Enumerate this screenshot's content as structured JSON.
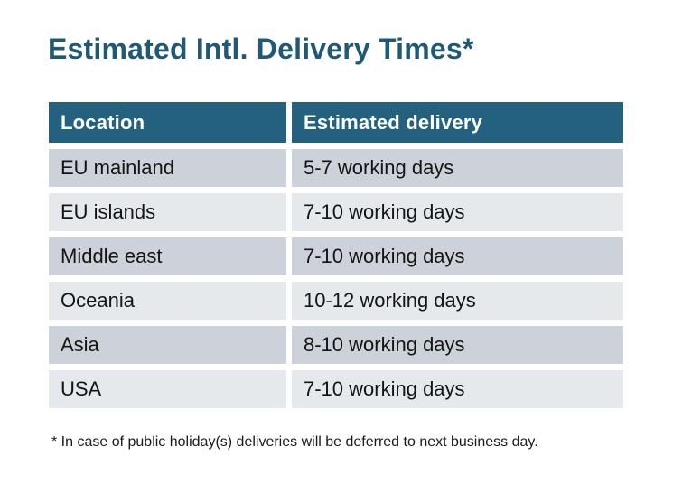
{
  "page": {
    "title": "Estimated Intl. Delivery Times*",
    "footnote": "* In case of public holiday(s) deliveries will be deferred to next business day."
  },
  "colors": {
    "background": "#ffffff",
    "title_text": "#1f5973",
    "header_bg": "#24617f",
    "header_text": "#ffffff",
    "row_dark_bg": "#cdd1d9",
    "row_light_bg": "#e6e9ec",
    "cell_text": "#141414"
  },
  "table": {
    "columns": [
      "Location",
      "Estimated delivery"
    ],
    "rows": [
      {
        "location": "EU mainland",
        "delivery": "5-7 working days"
      },
      {
        "location": "EU islands",
        "delivery": "7-10 working days"
      },
      {
        "location": "Middle east",
        "delivery": "7-10 working days"
      },
      {
        "location": "Oceania",
        "delivery": "10-12 working days"
      },
      {
        "location": "Asia",
        "delivery": "8-10 working days"
      },
      {
        "location": "USA",
        "delivery": "7-10 working days"
      }
    ]
  },
  "chart_data": {
    "type": "table",
    "title": "Estimated Intl. Delivery Times*",
    "columns": [
      "Location",
      "Estimated delivery"
    ],
    "rows": [
      [
        "EU mainland",
        "5-7 working days"
      ],
      [
        "EU islands",
        "7-10 working days"
      ],
      [
        "Middle east",
        "7-10 working days"
      ],
      [
        "Oceania",
        "10-12 working days"
      ],
      [
        "Asia",
        "8-10 working days"
      ],
      [
        "USA",
        "7-10 working days"
      ]
    ],
    "footnote": "* In case of public holiday(s) deliveries will be deferred to next business day.",
    "layout_hints": {
      "header_style": "teal background, white bold text",
      "row_style": "alternating gray shades starting dark, separated by white gutters",
      "grid": "off"
    }
  }
}
